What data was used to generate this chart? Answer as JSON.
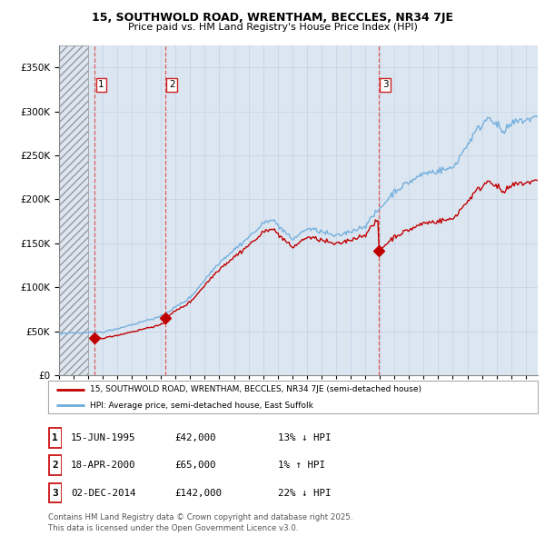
{
  "title_line1": "15, SOUTHWOLD ROAD, WRENTHAM, BECCLES, NR34 7JE",
  "title_line2": "Price paid vs. HM Land Registry's House Price Index (HPI)",
  "sale_dates_decimal": [
    1995.45,
    2000.3,
    2014.92
  ],
  "sale_prices": [
    42000,
    65000,
    142000
  ],
  "sale_labels": [
    "1",
    "2",
    "3"
  ],
  "legend_line1": "15, SOUTHWOLD ROAD, WRENTHAM, BECCLES, NR34 7JE (semi-detached house)",
  "legend_line2": "HPI: Average price, semi-detached house, East Suffolk",
  "table_rows": [
    [
      "1",
      "15-JUN-1995",
      "£42,000",
      "13% ↓ HPI"
    ],
    [
      "2",
      "18-APR-2000",
      "£65,000",
      "1% ↑ HPI"
    ],
    [
      "3",
      "02-DEC-2014",
      "£142,000",
      "22% ↓ HPI"
    ]
  ],
  "footer": "Contains HM Land Registry data © Crown copyright and database right 2025.\nThis data is licensed under the Open Government Licence v3.0.",
  "hpi_color": "#6aabdc",
  "price_color": "#c00000",
  "vline_color": "#e05050",
  "ylim": [
    0,
    375000
  ],
  "yticks": [
    0,
    50000,
    100000,
    150000,
    200000,
    250000,
    300000,
    350000
  ],
  "xlim_start": 1993.0,
  "xlim_end": 2025.8,
  "background_plot": "#dce6f1",
  "hatch_end": 1995.0
}
